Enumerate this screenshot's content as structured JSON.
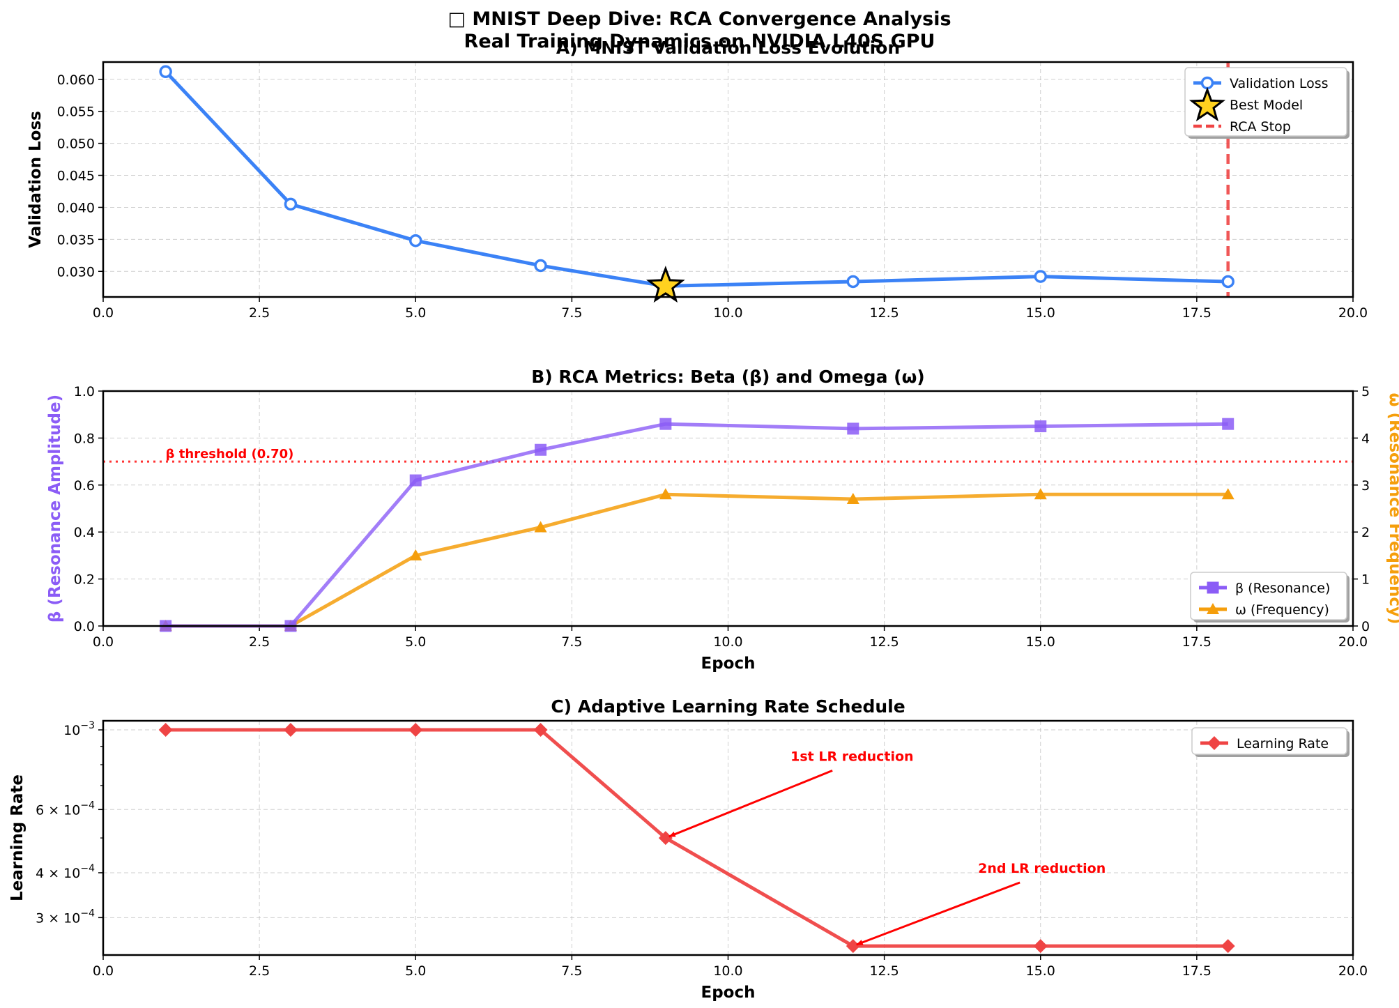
{
  "figure": {
    "title_line1": "□ MNIST Deep Dive: RCA Convergence Analysis",
    "title_line2": "Real Training Dynamics on NVIDIA L40S GPU"
  },
  "colors": {
    "loss": "#3b82f6",
    "beta": "#8b5cf6",
    "omega": "#f59e0b",
    "lr": "#ef4444",
    "rca_stop": "#ef4444",
    "threshold": "#ff3333",
    "annotation": "#ff0000",
    "star_fill": "#ffd21f"
  },
  "chart_data": [
    {
      "type": "line",
      "title": "A) MNIST Validation Loss Evolution",
      "xlabel": "",
      "ylabel": "Validation Loss",
      "xlim": [
        0,
        20
      ],
      "ylim": [
        0.026,
        0.0627
      ],
      "xticks": [
        0,
        2.5,
        5,
        7.5,
        10,
        12.5,
        15,
        17.5,
        20
      ],
      "xtick_labels": [
        "0.0",
        "2.5",
        "5.0",
        "7.5",
        "10.0",
        "12.5",
        "15.0",
        "17.5",
        "20.0"
      ],
      "yticks": [
        0.03,
        0.035,
        0.04,
        0.045,
        0.05,
        0.055,
        0.06
      ],
      "ytick_labels": [
        "0.030",
        "0.035",
        "0.040",
        "0.045",
        "0.050",
        "0.055",
        "0.060"
      ],
      "grid": true,
      "legend": "top-right",
      "series": [
        {
          "name": "Validation Loss",
          "x": [
            1,
            3,
            5,
            7,
            9,
            12,
            15,
            18
          ],
          "y": [
            0.0612,
            0.0405,
            0.0348,
            0.0309,
            0.0277,
            0.0284,
            0.0292,
            0.0284
          ]
        }
      ],
      "best_model": {
        "name": "Best Model",
        "x": 9,
        "y": 0.0277
      },
      "rca_stop": {
        "name": "RCA Stop",
        "x": 18
      }
    },
    {
      "type": "line",
      "title": "B) RCA Metrics: Beta (β) and Omega (ω)",
      "xlabel": "Epoch",
      "ylabel": "β (Resonance Amplitude)",
      "ylabel_right": "ω (Resonance Frequency)",
      "xlim": [
        0,
        20
      ],
      "ylim": [
        0,
        1
      ],
      "ylim_right": [
        0,
        5
      ],
      "xticks": [
        0,
        2.5,
        5,
        7.5,
        10,
        12.5,
        15,
        17.5,
        20
      ],
      "xtick_labels": [
        "0.0",
        "2.5",
        "5.0",
        "7.5",
        "10.0",
        "12.5",
        "15.0",
        "17.5",
        "20.0"
      ],
      "yticks": [
        0,
        0.2,
        0.4,
        0.6,
        0.8,
        1.0
      ],
      "ytick_labels": [
        "0.0",
        "0.2",
        "0.4",
        "0.6",
        "0.8",
        "1.0"
      ],
      "yticks_right": [
        0,
        1,
        2,
        3,
        4,
        5
      ],
      "ytick_labels_right": [
        "0",
        "1",
        "2",
        "3",
        "4",
        "5"
      ],
      "grid": true,
      "legend": "bottom-right",
      "series": [
        {
          "name": "β (Resonance)",
          "axis": "left",
          "x": [
            1,
            3,
            5,
            7,
            9,
            12,
            15,
            18
          ],
          "y": [
            0.0,
            0.0,
            0.62,
            0.75,
            0.86,
            0.84,
            0.85,
            0.86
          ]
        },
        {
          "name": "ω (Frequency)",
          "axis": "right",
          "x": [
            1,
            3,
            5,
            7,
            9,
            12,
            15,
            18
          ],
          "y": [
            0.0,
            0.0,
            1.5,
            2.1,
            2.8,
            2.7,
            2.8,
            2.8
          ]
        }
      ],
      "threshold": {
        "value": 0.7,
        "label": "β threshold (0.70)"
      }
    },
    {
      "type": "line",
      "title": "C) Adaptive Learning Rate Schedule",
      "xlabel": "Epoch",
      "ylabel": "Learning Rate",
      "yscale": "log",
      "xlim": [
        0,
        20
      ],
      "ylim": [
        0.000236,
        0.00106
      ],
      "xticks": [
        0,
        2.5,
        5,
        7.5,
        10,
        12.5,
        15,
        17.5,
        20
      ],
      "xtick_labels": [
        "0.0",
        "2.5",
        "5.0",
        "7.5",
        "10.0",
        "12.5",
        "15.0",
        "17.5",
        "20.0"
      ],
      "yticks": [
        {
          "value": 0.001,
          "base": "10",
          "exp": "−3"
        },
        {
          "value": 0.0006,
          "base": "6 × 10",
          "exp": "−4"
        },
        {
          "value": 0.0004,
          "base": "4 × 10",
          "exp": "−4"
        },
        {
          "value": 0.0003,
          "base": "3 × 10",
          "exp": "−4"
        }
      ],
      "minor_yticks": [
        0.0003,
        0.0004,
        0.0005,
        0.0006,
        0.0007,
        0.0008,
        0.0009
      ],
      "grid": true,
      "legend": "top-right",
      "series": [
        {
          "name": "Learning Rate",
          "x": [
            1,
            3,
            5,
            7,
            9,
            12,
            15,
            18
          ],
          "y": [
            0.001,
            0.001,
            0.001,
            0.001,
            0.0005,
            0.00025,
            0.00025,
            0.00025
          ]
        }
      ],
      "annotations": [
        {
          "label": "1st LR reduction",
          "x": 9,
          "y": 0.0005,
          "text_x": 11,
          "text_y": 0.00082
        },
        {
          "label": "2nd LR reduction",
          "x": 12,
          "y": 0.00025,
          "text_x": 14,
          "text_y": 0.0004
        }
      ]
    }
  ]
}
